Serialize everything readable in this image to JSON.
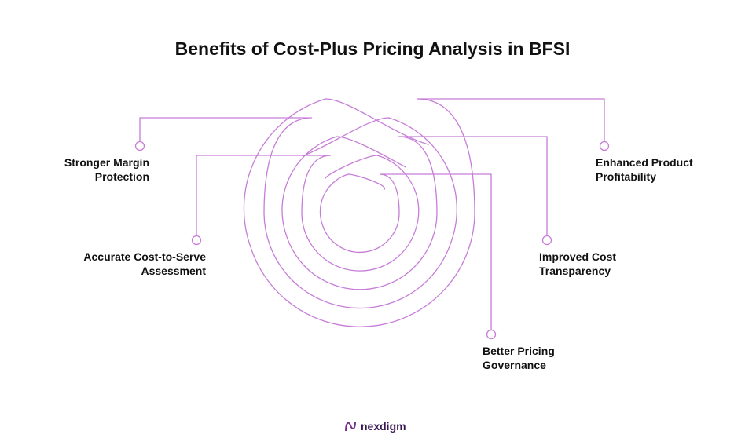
{
  "title": "Benefits of Cost-Plus Pricing Analysis in BFSI",
  "benefits": [
    {
      "lines": [
        "Stronger Margin",
        "Protection"
      ]
    },
    {
      "lines": [
        "Accurate Cost-to-Serve",
        "Assessment"
      ]
    },
    {
      "lines": [
        "Enhanced Product",
        "Profitability"
      ]
    },
    {
      "lines": [
        "Improved Cost",
        "Transparency"
      ]
    },
    {
      "lines": [
        "Better Pricing",
        "Governance"
      ]
    }
  ],
  "logo": "nexdigm"
}
